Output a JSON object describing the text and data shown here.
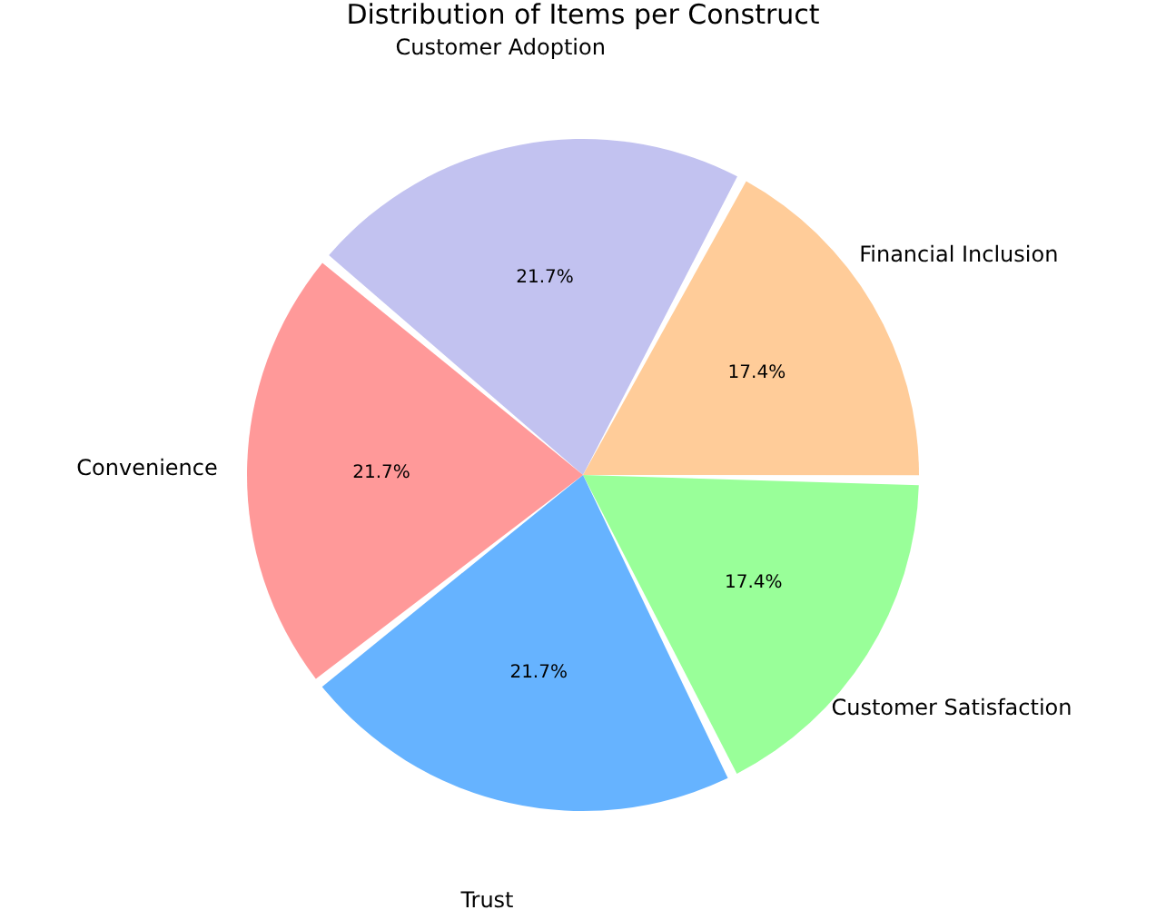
{
  "chart_data": {
    "type": "pie",
    "title": "Distribution of Items per Construct",
    "categories": [
      "Customer Adoption",
      "Financial Inclusion",
      "Customer Satisfaction",
      "Trust",
      "Convenience"
    ],
    "values": [
      21.7,
      17.4,
      17.4,
      21.7,
      21.7
    ],
    "value_labels": [
      "21.7%",
      "17.4%",
      "17.4%",
      "21.7%",
      "21.7%"
    ],
    "colors": [
      "#c2c2f0",
      "#ffcc99",
      "#99ff99",
      "#66b3ff",
      "#ff9999"
    ]
  }
}
